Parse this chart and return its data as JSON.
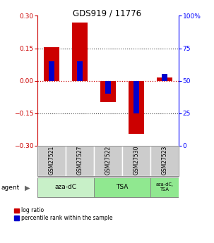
{
  "title": "GDS919 / 11776",
  "samples": [
    "GSM27521",
    "GSM27527",
    "GSM27522",
    "GSM27530",
    "GSM27523"
  ],
  "log_ratio": [
    0.155,
    0.27,
    -0.1,
    -0.245,
    0.015
  ],
  "pct_rank": [
    65,
    65,
    40,
    25,
    55
  ],
  "agent_colors": [
    "#c8f0c8",
    "#90e890",
    "#90e890"
  ],
  "ylim": [
    -0.3,
    0.3
  ],
  "yticks_left": [
    -0.3,
    -0.15,
    0,
    0.15,
    0.3
  ],
  "yticks_right": [
    0,
    25,
    50,
    75,
    100
  ],
  "bar_width": 0.55,
  "blue_bar_width": 0.18,
  "red_color": "#cc0000",
  "blue_color": "#0000cc",
  "dotted_color": "#444444",
  "sample_box_color": "#cccccc",
  "legend_red": "log ratio",
  "legend_blue": "percentile rank within the sample"
}
